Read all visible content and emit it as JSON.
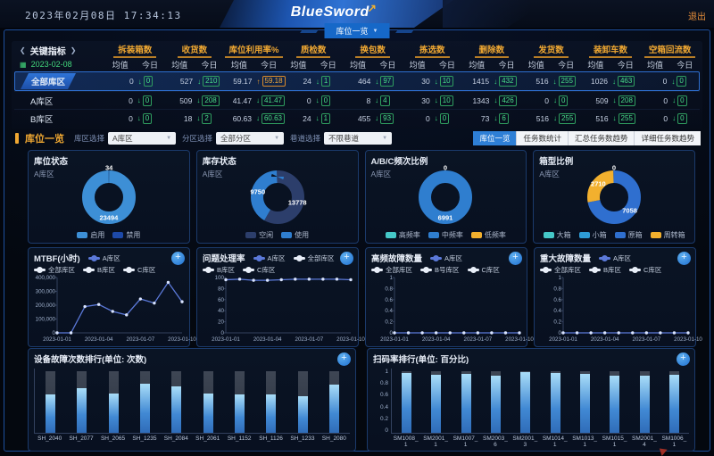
{
  "icons": {
    "plus": "+",
    "chevron_left": "❮",
    "chevron_right": "❯",
    "dropdown_arrow": "▼",
    "tab_arrow": "▼",
    "calendar": "▦",
    "down_arrow": "↓",
    "up_arrow": "↑",
    "brand_arrow": "↗"
  },
  "header": {
    "datetime": "2023年02月08日 17:34:13",
    "brand": "BlueSword",
    "logout_label": "退出",
    "tab_label": "库位一览"
  },
  "kpi": {
    "title": "关键指标",
    "date": "2023-02-08",
    "subcols": {
      "avg": "均值",
      "today": "今日"
    },
    "groups": [
      "拆装箱数",
      "收货数",
      "库位利用率%",
      "质检数",
      "换包数",
      "拣选数",
      "删除数",
      "发货数",
      "装卸车数",
      "空箱回流数"
    ],
    "rows": [
      {
        "name": "全部库区",
        "selected": true,
        "cells": [
          [
            "0",
            "0",
            "down"
          ],
          [
            "527",
            "210",
            "down"
          ],
          [
            "59.17",
            "59.18",
            "up"
          ],
          [
            "24",
            "1",
            "down"
          ],
          [
            "464",
            "97",
            "down"
          ],
          [
            "30",
            "10",
            "down"
          ],
          [
            "1415",
            "432",
            "down"
          ],
          [
            "516",
            "255",
            "down"
          ],
          [
            "1026",
            "463",
            "down"
          ],
          [
            "0",
            "0",
            "down"
          ]
        ]
      },
      {
        "name": "A库区",
        "selected": false,
        "cells": [
          [
            "0",
            "0",
            "down"
          ],
          [
            "509",
            "208",
            "down"
          ],
          [
            "41.47",
            "41.47",
            "down"
          ],
          [
            "0",
            "0",
            "down"
          ],
          [
            "8",
            "4",
            "down"
          ],
          [
            "30",
            "10",
            "down"
          ],
          [
            "1343",
            "426",
            "down"
          ],
          [
            "0",
            "0",
            "down"
          ],
          [
            "509",
            "208",
            "down"
          ],
          [
            "0",
            "0",
            "down"
          ]
        ]
      },
      {
        "name": "B库区",
        "selected": false,
        "cells": [
          [
            "0",
            "0",
            "down"
          ],
          [
            "18",
            "2",
            "down"
          ],
          [
            "60.63",
            "60.63",
            "down"
          ],
          [
            "24",
            "1",
            "down"
          ],
          [
            "455",
            "93",
            "down"
          ],
          [
            "0",
            "0",
            "down"
          ],
          [
            "73",
            "6",
            "down"
          ],
          [
            "516",
            "255",
            "down"
          ],
          [
            "516",
            "255",
            "down"
          ],
          [
            "0",
            "0",
            "down"
          ]
        ]
      }
    ]
  },
  "filters": {
    "title": "库位一览",
    "selects": [
      {
        "label": "库区选择",
        "value": "A库区"
      },
      {
        "label": "分区选择",
        "value": "全部分区"
      },
      {
        "label": "巷道选择",
        "value": "不限巷道"
      }
    ],
    "view_buttons": [
      {
        "label": "库位一览",
        "active": true
      },
      {
        "label": "任务数统计",
        "active": false
      },
      {
        "label": "汇总任务数趋势",
        "active": false
      },
      {
        "label": "详细任务数趋势",
        "active": false
      }
    ]
  },
  "chart_data": [
    {
      "id": "donut-position-status",
      "type": "pie",
      "title": "库位状态",
      "subtitle": "A库区",
      "segments": [
        {
          "label": "禁用",
          "value": 34,
          "color": "#1d49a8",
          "label_shown": true
        },
        {
          "label": "启用",
          "value": 23494,
          "color": "#3d8fd6",
          "label_shown": true
        }
      ],
      "legend": [
        {
          "label": "启用",
          "color": "#3d8fd6"
        },
        {
          "label": "禁用",
          "color": "#1d49a8"
        }
      ]
    },
    {
      "id": "donut-stock-status",
      "type": "pie",
      "title": "库存状态",
      "subtitle": "A库区",
      "segments": [
        {
          "label": "空闲",
          "value": 13778,
          "color": "#2c3e6b",
          "label_shown": true
        },
        {
          "label": "使用",
          "value": 9750,
          "color": "#2f7ecf",
          "label_shown": true
        }
      ],
      "legend": [
        {
          "label": "空闲",
          "color": "#2c3e6b"
        },
        {
          "label": "使用",
          "color": "#2f7ecf"
        }
      ]
    },
    {
      "id": "donut-abc-frequency",
      "type": "pie",
      "title": "A/B/C频次比例",
      "subtitle": "A库区",
      "segments": [
        {
          "label": "高频率",
          "value": 0,
          "color": "#45c8c8",
          "label_shown": true
        },
        {
          "label": "中频率",
          "value": 6991,
          "color": "#2f7ecf",
          "label_shown": true
        },
        {
          "label": "低频率",
          "value": 0,
          "color": "#f2b02e",
          "label_shown": false
        }
      ],
      "legend": [
        {
          "label": "高频率",
          "color": "#45c8c8"
        },
        {
          "label": "中频率",
          "color": "#2f7ecf"
        },
        {
          "label": "低频率",
          "color": "#f2b02e"
        }
      ]
    },
    {
      "id": "donut-box-type",
      "type": "pie",
      "title": "箱型比例",
      "subtitle": "A库区",
      "segments": [
        {
          "label": "大箱",
          "value": 0,
          "color": "#45c8c8",
          "label_shown": true
        },
        {
          "label": "原箱",
          "value": 7058,
          "color": "#2f6fcf",
          "label_shown": true
        },
        {
          "label": "周转箱",
          "value": 2710,
          "color": "#f2b02e",
          "label_shown": true
        }
      ],
      "legend": [
        {
          "label": "大箱",
          "color": "#45c8c8"
        },
        {
          "label": "小箱",
          "color": "#2e9cd6"
        },
        {
          "label": "原箱",
          "color": "#2f6fcf"
        },
        {
          "label": "周转箱",
          "color": "#f2b02e"
        }
      ]
    },
    {
      "id": "line-mtbf",
      "type": "line",
      "title": "MTBF(小时)",
      "legend": [
        {
          "label": "A库区",
          "color": "#5b79d9"
        },
        {
          "label": "全部库区",
          "color": "#e8eef8"
        },
        {
          "label": "B库区",
          "color": "#e8eef8"
        },
        {
          "label": "C库区",
          "color": "#e8eef8"
        }
      ],
      "x": [
        "2023-01-01",
        "2023-01-02",
        "2023-01-03",
        "2023-01-04",
        "2023-01-05",
        "2023-01-06",
        "2023-01-07",
        "2023-01-08",
        "2023-01-09",
        "2023-01-10"
      ],
      "x_ticks": [
        "2023-01-01",
        "2023-01-04",
        "2023-01-07",
        "2023-01-10"
      ],
      "ylim": [
        0,
        400000
      ],
      "y_ticks": [
        "400,000",
        "300,000",
        "200,000",
        "100,000",
        "0"
      ],
      "series": [
        {
          "name": "A库区",
          "color": "#5b79d9",
          "values": [
            0,
            0,
            190000,
            205000,
            155000,
            130000,
            245000,
            215000,
            365000,
            225000
          ]
        }
      ]
    },
    {
      "id": "line-issue-rate",
      "type": "line",
      "title": "问题处理率",
      "legend": [
        {
          "label": "A库区",
          "color": "#5b79d9"
        },
        {
          "label": "全部库区",
          "color": "#e8eef8"
        },
        {
          "label": "B库区",
          "color": "#e8eef8"
        },
        {
          "label": "C库区",
          "color": "#e8eef8"
        }
      ],
      "x": [
        "2023-01-01",
        "2023-01-02",
        "2023-01-03",
        "2023-01-04",
        "2023-01-05",
        "2023-01-06",
        "2023-01-07",
        "2023-01-08",
        "2023-01-09",
        "2023-01-10"
      ],
      "x_ticks": [
        "2023-01-01",
        "2023-01-04",
        "2023-01-07",
        "2023-01-10"
      ],
      "ylim": [
        0,
        100
      ],
      "y_ticks": [
        "100",
        "80",
        "60",
        "40",
        "20",
        "0"
      ],
      "series": [
        {
          "name": "A库区",
          "color": "#5b79d9",
          "values": [
            96,
            97,
            95,
            95,
            96,
            97,
            97,
            97,
            97,
            96
          ]
        }
      ]
    },
    {
      "id": "line-highfreq-fault",
      "type": "line",
      "title": "高频故障数量",
      "legend": [
        {
          "label": "A库区",
          "color": "#5b79d9"
        },
        {
          "label": "全部库区",
          "color": "#e8eef8"
        },
        {
          "label": "B号库区",
          "color": "#e8eef8"
        },
        {
          "label": "C库区",
          "color": "#e8eef8"
        }
      ],
      "x": [
        "2023-01-01",
        "2023-01-02",
        "2023-01-03",
        "2023-01-04",
        "2023-01-05",
        "2023-01-06",
        "2023-01-07",
        "2023-01-08",
        "2023-01-09",
        "2023-01-10"
      ],
      "x_ticks": [
        "2023-01-01",
        "2023-01-04",
        "2023-01-07",
        "2023-01-10"
      ],
      "ylim": [
        0,
        1
      ],
      "y_ticks": [
        "1",
        "0.8",
        "0.6",
        "0.4",
        "0.2",
        "0"
      ],
      "series": [
        {
          "name": "A库区",
          "color": "#5b79d9",
          "values": [
            0,
            0,
            0,
            0,
            0,
            0,
            0,
            0,
            0,
            0
          ]
        }
      ]
    },
    {
      "id": "line-major-fault",
      "type": "line",
      "title": "重大故障数量",
      "legend": [
        {
          "label": "A库区",
          "color": "#5b79d9"
        },
        {
          "label": "全部库区",
          "color": "#e8eef8"
        },
        {
          "label": "B库区",
          "color": "#e8eef8"
        },
        {
          "label": "C库区",
          "color": "#e8eef8"
        }
      ],
      "x": [
        "2023-01-01",
        "2023-01-02",
        "2023-01-03",
        "2023-01-04",
        "2023-01-05",
        "2023-01-06",
        "2023-01-07",
        "2023-01-08",
        "2023-01-09",
        "2023-01-10"
      ],
      "x_ticks": [
        "2023-01-01",
        "2023-01-04",
        "2023-01-07",
        "2023-01-10"
      ],
      "ylim": [
        0,
        1
      ],
      "y_ticks": [
        "1",
        "0.8",
        "0.6",
        "0.4",
        "0.2",
        "0"
      ],
      "series": [
        {
          "name": "A库区",
          "color": "#5b79d9",
          "values": [
            0,
            0,
            0,
            0,
            0,
            0,
            0,
            0,
            0,
            0
          ]
        }
      ]
    },
    {
      "id": "bar-device-fault-rank",
      "type": "bar",
      "title": "设备故障次数排行(单位: 次数)",
      "categories": [
        "SH_2040",
        "SH_2077",
        "SH_2065",
        "SH_1235",
        "SH_2084",
        "SH_2061",
        "SH_1152",
        "SH_1126",
        "SH_1233",
        "SH_2080"
      ],
      "values": [
        0.62,
        0.72,
        0.63,
        0.79,
        0.75,
        0.63,
        0.62,
        0.62,
        0.6,
        0.78
      ],
      "ylim": [
        0,
        1
      ],
      "y_ticks": []
    },
    {
      "id": "bar-scan-rate-rank",
      "type": "bar",
      "title": "扫码率排行(单位: 百分比)",
      "categories": [
        "SM1008_1",
        "SM2001_1",
        "SM1007_1",
        "SM2003_6",
        "SM2001_3",
        "SM1014_1",
        "SM1013_1",
        "SM1015_1",
        "SM2001_4",
        "SM1006_1"
      ],
      "values": [
        0.97,
        0.94,
        0.95,
        0.92,
        0.98,
        0.97,
        0.95,
        0.92,
        0.93,
        0.94
      ],
      "ylim": [
        0,
        1
      ],
      "y_ticks": [
        "1",
        "0.8",
        "0.6",
        "0.4",
        "0.2",
        "0"
      ]
    }
  ]
}
